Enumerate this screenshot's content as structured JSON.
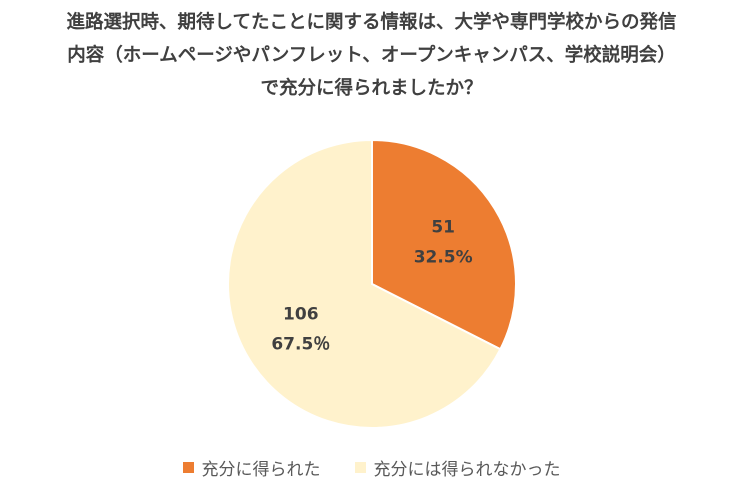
{
  "title": {
    "line1": "進路選択時、期待してたことに関する情報は、大学や専門学校からの発信",
    "line2": "内容（ホームページやパンフレット、オープンキャンパス、学校説明会）",
    "line3": "で充分に得られましたか？"
  },
  "chart_data": {
    "type": "pie",
    "start_angle_deg": 0,
    "direction": "clockwise",
    "slices": [
      {
        "label": "充分に得られた",
        "value": 51,
        "percent_label": "32.5%",
        "color": "#ED7D31"
      },
      {
        "label": "充分には得られなかった",
        "value": 106,
        "percent_label": "67.5％",
        "color": "#FFF2CC"
      }
    ],
    "legend_position": "bottom"
  }
}
